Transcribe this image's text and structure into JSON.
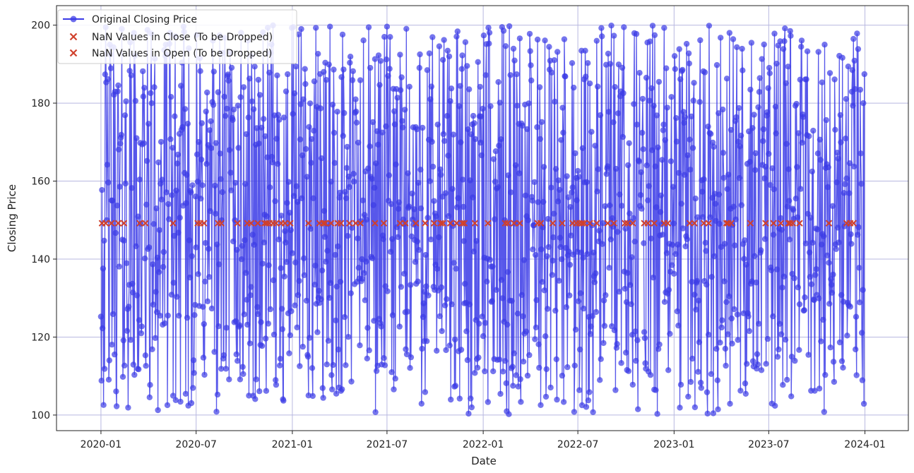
{
  "chart_data": {
    "type": "line",
    "xlabel": "Date",
    "ylabel": "Closing Price",
    "xlim": [
      "2019-10-08",
      "2024-03-24"
    ],
    "ylim": [
      96,
      205
    ],
    "x_ticks": [
      "2020-01",
      "2020-07",
      "2021-01",
      "2021-07",
      "2022-01",
      "2022-07",
      "2023-01",
      "2023-07",
      "2024-01"
    ],
    "y_ticks": [
      100,
      120,
      140,
      160,
      180,
      200
    ],
    "grid": true,
    "legend_position": "top-left",
    "date_range": [
      "2020-01-01",
      "2023-12-31"
    ],
    "series": [
      {
        "name": "Original Closing Price",
        "kind": "line-with-markers",
        "color": "#3a3ae6",
        "y_range": [
          100,
          200
        ],
        "points_per_day": 1
      },
      {
        "name": "NaN Values in Close (To be Dropped)",
        "kind": "scatter-x",
        "color": "#d0402c",
        "y": 149.2
      },
      {
        "name": "NaN Values in Open (To be Dropped)",
        "kind": "scatter-x",
        "color": "#d0402c",
        "y": 149.2
      }
    ],
    "nan_dates": [
      "2020-01-03",
      "2020-01-10",
      "2020-01-21",
      "2020-02-03",
      "2020-02-14",
      "2020-03-15",
      "2020-03-26",
      "2020-05-18",
      "2020-07-04",
      "2020-07-09",
      "2020-07-16",
      "2020-08-12",
      "2020-08-18",
      "2020-09-18",
      "2020-10-07",
      "2020-10-14",
      "2020-10-27",
      "2020-11-09",
      "2020-11-13",
      "2020-11-18",
      "2020-11-25",
      "2020-12-01",
      "2020-12-11",
      "2020-12-18",
      "2020-12-28",
      "2021-02-01",
      "2021-02-22",
      "2021-03-01",
      "2021-03-05",
      "2021-03-16",
      "2021-03-29",
      "2021-04-04",
      "2021-04-20",
      "2021-05-02",
      "2021-05-11",
      "2021-06-08",
      "2021-06-25",
      "2021-07-26",
      "2021-08-05",
      "2021-08-25",
      "2021-09-12",
      "2021-09-29",
      "2021-10-12",
      "2021-10-16",
      "2021-10-30",
      "2021-11-11",
      "2021-11-22",
      "2021-11-26",
      "2021-12-16",
      "2022-01-10",
      "2022-02-12",
      "2022-02-17",
      "2022-03-01",
      "2022-03-12",
      "2022-04-15",
      "2022-04-21",
      "2022-05-14",
      "2022-06-01",
      "2022-06-21",
      "2022-06-28",
      "2022-07-04",
      "2022-07-09",
      "2022-07-13",
      "2022-07-24",
      "2022-08-06",
      "2022-08-27",
      "2022-09-08",
      "2022-09-29",
      "2022-10-04",
      "2022-10-14",
      "2022-11-05",
      "2022-11-12",
      "2022-11-24",
      "2022-12-13",
      "2022-12-20",
      "2023-01-31",
      "2023-02-09",
      "2023-02-27",
      "2023-03-08",
      "2023-04-11",
      "2023-04-14",
      "2023-04-20",
      "2023-05-27",
      "2023-06-25",
      "2023-07-10",
      "2023-07-24",
      "2023-08-08",
      "2023-08-11",
      "2023-08-16",
      "2023-08-29",
      "2023-10-24",
      "2023-11-27",
      "2023-12-04",
      "2023-12-10"
    ]
  }
}
